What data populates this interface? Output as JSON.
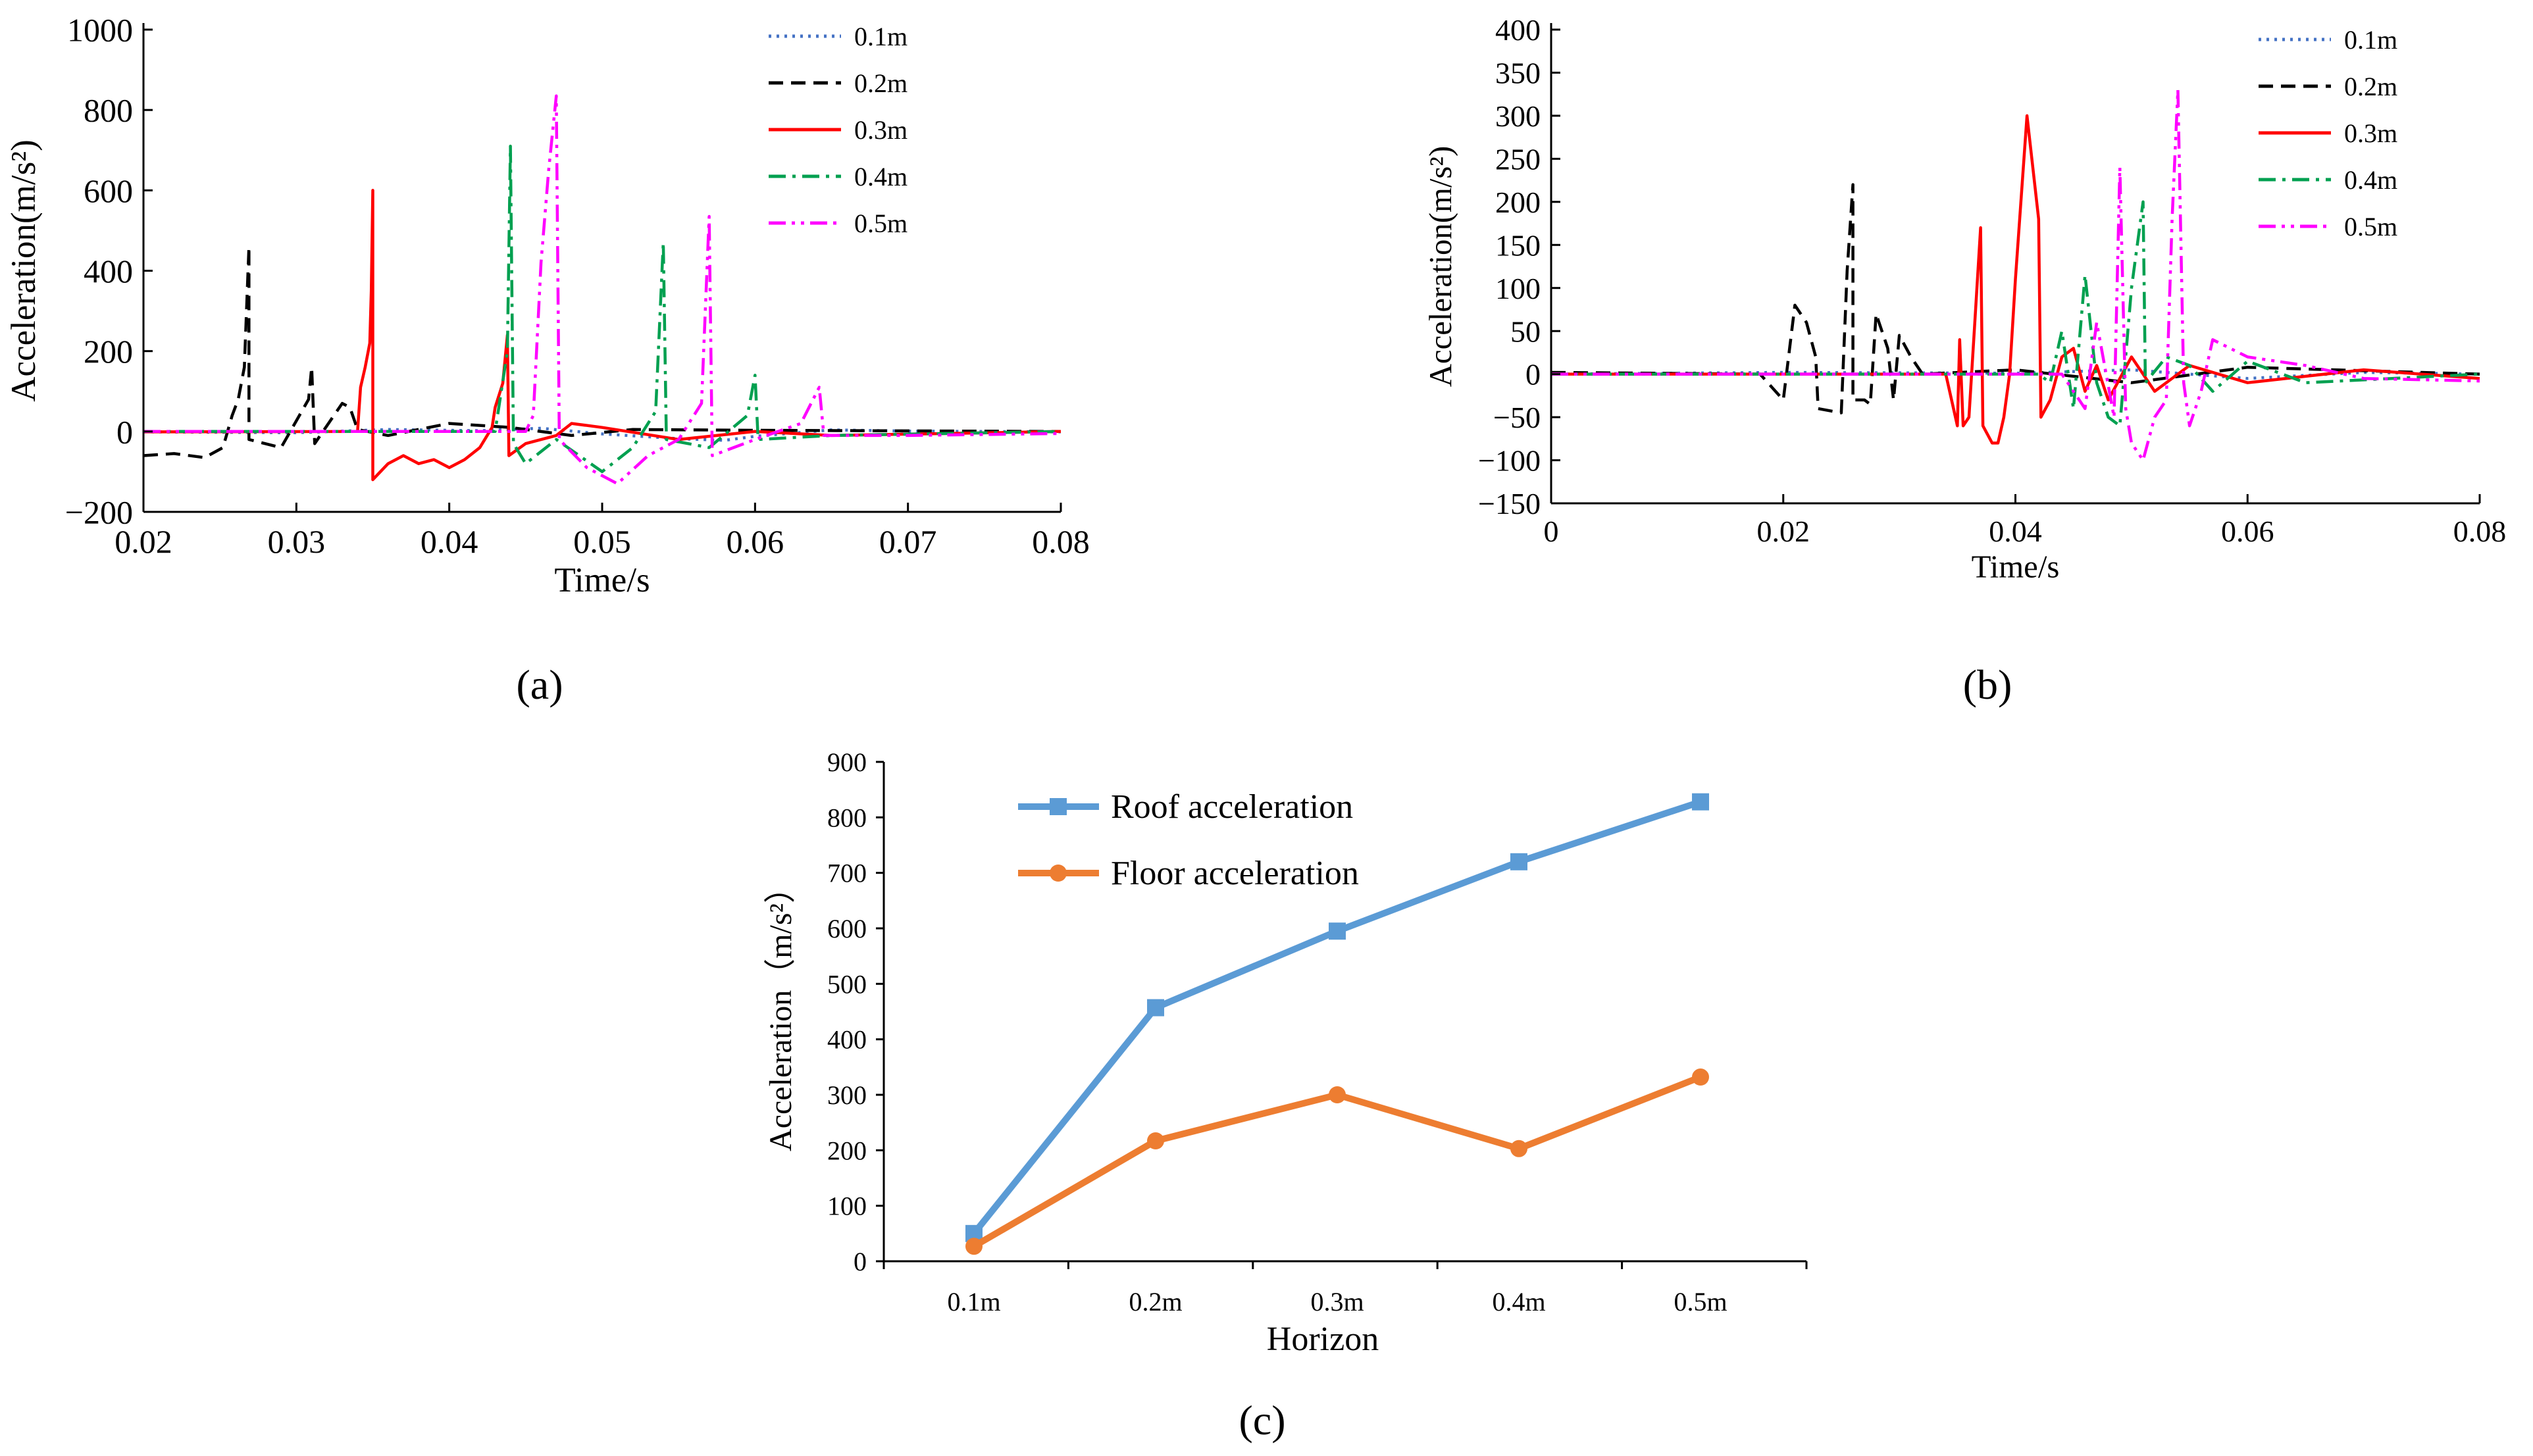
{
  "chart_data": [
    {
      "type": "line",
      "panel_label": "(a)",
      "xlabel": "Time/s",
      "ylabel": "Acceleration(m/s²)",
      "xlim": [
        0.02,
        0.08
      ],
      "ylim": [
        -200,
        1000
      ],
      "x_ticks": [
        "0.02",
        "0.03",
        "0.04",
        "0.05",
        "0.06",
        "0.07",
        "0.08"
      ],
      "y_ticks": [
        "−200",
        "0",
        "200",
        "400",
        "600",
        "800",
        "1000"
      ],
      "legend_position": "top-right",
      "series": [
        {
          "name": "0.1m",
          "color": "#4472c4",
          "style": "dotted",
          "points": [
            [
              0.02,
              -1
            ],
            [
              0.03,
              -3
            ],
            [
              0.036,
              5
            ],
            [
              0.042,
              2
            ],
            [
              0.046,
              8
            ],
            [
              0.05,
              -6
            ],
            [
              0.055,
              -18
            ],
            [
              0.058,
              -22
            ],
            [
              0.06,
              -12
            ],
            [
              0.065,
              4
            ],
            [
              0.07,
              1
            ],
            [
              0.08,
              -1
            ]
          ]
        },
        {
          "name": "0.2m",
          "color": "#000000",
          "style": "dashed",
          "points": [
            [
              0.02,
              -60
            ],
            [
              0.022,
              -55
            ],
            [
              0.024,
              -65
            ],
            [
              0.0252,
              -40
            ],
            [
              0.0258,
              40
            ],
            [
              0.0262,
              80
            ],
            [
              0.0266,
              160
            ],
            [
              0.0269,
              460
            ],
            [
              0.0269,
              -20
            ],
            [
              0.029,
              -40
            ],
            [
              0.0302,
              40
            ],
            [
              0.0308,
              80
            ],
            [
              0.031,
              160
            ],
            [
              0.0312,
              -30
            ],
            [
              0.033,
              70
            ],
            [
              0.0335,
              60
            ],
            [
              0.034,
              5
            ],
            [
              0.036,
              -10
            ],
            [
              0.04,
              20
            ],
            [
              0.044,
              10
            ],
            [
              0.048,
              -10
            ],
            [
              0.052,
              5
            ],
            [
              0.06,
              3
            ],
            [
              0.08,
              0
            ]
          ]
        },
        {
          "name": "0.3m",
          "color": "#ff0000",
          "style": "solid",
          "points": [
            [
              0.02,
              -1
            ],
            [
              0.034,
              0
            ],
            [
              0.0342,
              110
            ],
            [
              0.0345,
              160
            ],
            [
              0.0348,
              220
            ],
            [
              0.0349,
              350
            ],
            [
              0.035,
              600
            ],
            [
              0.035,
              -120
            ],
            [
              0.036,
              -80
            ],
            [
              0.037,
              -60
            ],
            [
              0.038,
              -80
            ],
            [
              0.039,
              -70
            ],
            [
              0.04,
              -90
            ],
            [
              0.041,
              -70
            ],
            [
              0.042,
              -40
            ],
            [
              0.0428,
              10
            ],
            [
              0.043,
              60
            ],
            [
              0.0435,
              120
            ],
            [
              0.0438,
              240
            ],
            [
              0.0439,
              -60
            ],
            [
              0.045,
              -30
            ],
            [
              0.047,
              -10
            ],
            [
              0.048,
              20
            ],
            [
              0.05,
              10
            ],
            [
              0.055,
              -20
            ],
            [
              0.06,
              0
            ],
            [
              0.065,
              -10
            ],
            [
              0.08,
              0
            ]
          ]
        },
        {
          "name": "0.4m",
          "color": "#00a050",
          "style": "dashdot",
          "points": [
            [
              0.02,
              0
            ],
            [
              0.043,
              0
            ],
            [
              0.0438,
              200
            ],
            [
              0.044,
              710
            ],
            [
              0.0442,
              -30
            ],
            [
              0.045,
              -80
            ],
            [
              0.047,
              -20
            ],
            [
              0.05,
              -100
            ],
            [
              0.052,
              -40
            ],
            [
              0.0535,
              50
            ],
            [
              0.054,
              470
            ],
            [
              0.0542,
              -20
            ],
            [
              0.057,
              -40
            ],
            [
              0.0595,
              40
            ],
            [
              0.06,
              140
            ],
            [
              0.0602,
              -20
            ],
            [
              0.065,
              -10
            ],
            [
              0.08,
              0
            ]
          ]
        },
        {
          "name": "0.5m",
          "color": "#ff00ff",
          "style": "dashdotdot",
          "points": [
            [
              0.02,
              0
            ],
            [
              0.045,
              0
            ],
            [
              0.0455,
              40
            ],
            [
              0.046,
              420
            ],
            [
              0.0465,
              650
            ],
            [
              0.047,
              835
            ],
            [
              0.0472,
              -20
            ],
            [
              0.049,
              -90
            ],
            [
              0.051,
              -130
            ],
            [
              0.053,
              -60
            ],
            [
              0.055,
              -20
            ],
            [
              0.0565,
              70
            ],
            [
              0.057,
              535
            ],
            [
              0.0572,
              -60
            ],
            [
              0.06,
              -20
            ],
            [
              0.063,
              20
            ],
            [
              0.0642,
              110
            ],
            [
              0.0645,
              -10
            ],
            [
              0.07,
              -10
            ],
            [
              0.08,
              -5
            ]
          ]
        }
      ]
    },
    {
      "type": "line",
      "panel_label": "(b)",
      "xlabel": "Time/s",
      "ylabel": "Acceleration(m/s²)",
      "xlim": [
        0,
        0.08
      ],
      "ylim": [
        -150,
        400
      ],
      "x_ticks": [
        "0",
        "0.02",
        "0.04",
        "0.06",
        "0.08"
      ],
      "y_ticks": [
        "−150",
        "−100",
        "−50",
        "0",
        "50",
        "100",
        "150",
        "200",
        "250",
        "300",
        "350",
        "400"
      ],
      "legend_position": "top-right",
      "series": [
        {
          "name": "0.1m",
          "color": "#4472c4",
          "style": "dotted",
          "points": [
            [
              0,
              0
            ],
            [
              0.02,
              2
            ],
            [
              0.04,
              1
            ],
            [
              0.05,
              5
            ],
            [
              0.06,
              -5
            ],
            [
              0.07,
              2
            ],
            [
              0.08,
              0
            ]
          ]
        },
        {
          "name": "0.2m",
          "color": "#000000",
          "style": "dashed",
          "points": [
            [
              0,
              2
            ],
            [
              0.018,
              0
            ],
            [
              0.02,
              -30
            ],
            [
              0.021,
              80
            ],
            [
              0.022,
              60
            ],
            [
              0.0228,
              20
            ],
            [
              0.023,
              -40
            ],
            [
              0.025,
              -45
            ],
            [
              0.0255,
              120
            ],
            [
              0.026,
              220
            ],
            [
              0.026,
              -30
            ],
            [
              0.027,
              -30
            ],
            [
              0.0275,
              -35
            ],
            [
              0.028,
              70
            ],
            [
              0.029,
              30
            ],
            [
              0.0295,
              -30
            ],
            [
              0.03,
              45
            ],
            [
              0.031,
              20
            ],
            [
              0.032,
              0
            ],
            [
              0.04,
              5
            ],
            [
              0.05,
              -10
            ],
            [
              0.06,
              8
            ],
            [
              0.08,
              0
            ]
          ]
        },
        {
          "name": "0.3m",
          "color": "#ff0000",
          "style": "solid",
          "points": [
            [
              0,
              0
            ],
            [
              0.034,
              0
            ],
            [
              0.035,
              -60
            ],
            [
              0.0352,
              40
            ],
            [
              0.0355,
              -60
            ],
            [
              0.036,
              -50
            ],
            [
              0.0365,
              60
            ],
            [
              0.037,
              170
            ],
            [
              0.0372,
              -60
            ],
            [
              0.038,
              -80
            ],
            [
              0.0385,
              -80
            ],
            [
              0.039,
              -50
            ],
            [
              0.0395,
              0
            ],
            [
              0.04,
              110
            ],
            [
              0.041,
              300
            ],
            [
              0.042,
              180
            ],
            [
              0.0422,
              -50
            ],
            [
              0.043,
              -30
            ],
            [
              0.044,
              20
            ],
            [
              0.045,
              30
            ],
            [
              0.046,
              -20
            ],
            [
              0.047,
              10
            ],
            [
              0.048,
              -30
            ],
            [
              0.05,
              20
            ],
            [
              0.052,
              -20
            ],
            [
              0.055,
              10
            ],
            [
              0.06,
              -10
            ],
            [
              0.07,
              5
            ],
            [
              0.08,
              -5
            ]
          ]
        },
        {
          "name": "0.4m",
          "color": "#00a050",
          "style": "dashdot",
          "points": [
            [
              0,
              0
            ],
            [
              0.042,
              0
            ],
            [
              0.043,
              -10
            ],
            [
              0.044,
              50
            ],
            [
              0.045,
              -40
            ],
            [
              0.046,
              115
            ],
            [
              0.047,
              -10
            ],
            [
              0.048,
              -50
            ],
            [
              0.049,
              -60
            ],
            [
              0.05,
              100
            ],
            [
              0.051,
              200
            ],
            [
              0.0512,
              -10
            ],
            [
              0.053,
              20
            ],
            [
              0.055,
              10
            ],
            [
              0.057,
              -20
            ],
            [
              0.06,
              15
            ],
            [
              0.065,
              -10
            ],
            [
              0.08,
              0
            ]
          ]
        },
        {
          "name": "0.5m",
          "color": "#ff00ff",
          "style": "dashdotdot",
          "points": [
            [
              0,
              0
            ],
            [
              0.044,
              0
            ],
            [
              0.046,
              -40
            ],
            [
              0.047,
              60
            ],
            [
              0.0485,
              -50
            ],
            [
              0.049,
              240
            ],
            [
              0.0495,
              -40
            ],
            [
              0.05,
              -80
            ],
            [
              0.051,
              -100
            ],
            [
              0.052,
              -50
            ],
            [
              0.053,
              -30
            ],
            [
              0.0535,
              180
            ],
            [
              0.054,
              330
            ],
            [
              0.0545,
              -10
            ],
            [
              0.055,
              -60
            ],
            [
              0.056,
              -20
            ],
            [
              0.057,
              40
            ],
            [
              0.06,
              20
            ],
            [
              0.065,
              10
            ],
            [
              0.07,
              -5
            ],
            [
              0.08,
              -8
            ]
          ]
        }
      ]
    },
    {
      "type": "line",
      "panel_label": "(c)",
      "xlabel": "Horizon",
      "ylabel": "Acceleration（m/s²）",
      "categories": [
        "0.1m",
        "0.2m",
        "0.3m",
        "0.4m",
        "0.5m"
      ],
      "ylim": [
        0,
        900
      ],
      "y_ticks": [
        "0",
        "100",
        "200",
        "300",
        "400",
        "500",
        "600",
        "700",
        "800",
        "900"
      ],
      "legend_position": "top-left",
      "series": [
        {
          "name": "Roof acceleration",
          "color": "#5b9bd5",
          "marker": "square",
          "values": [
            50,
            457,
            595,
            720,
            828
          ]
        },
        {
          "name": "Floor acceleration",
          "color": "#ed7d31",
          "marker": "circle",
          "values": [
            27,
            217,
            300,
            203,
            332
          ]
        }
      ]
    }
  ]
}
